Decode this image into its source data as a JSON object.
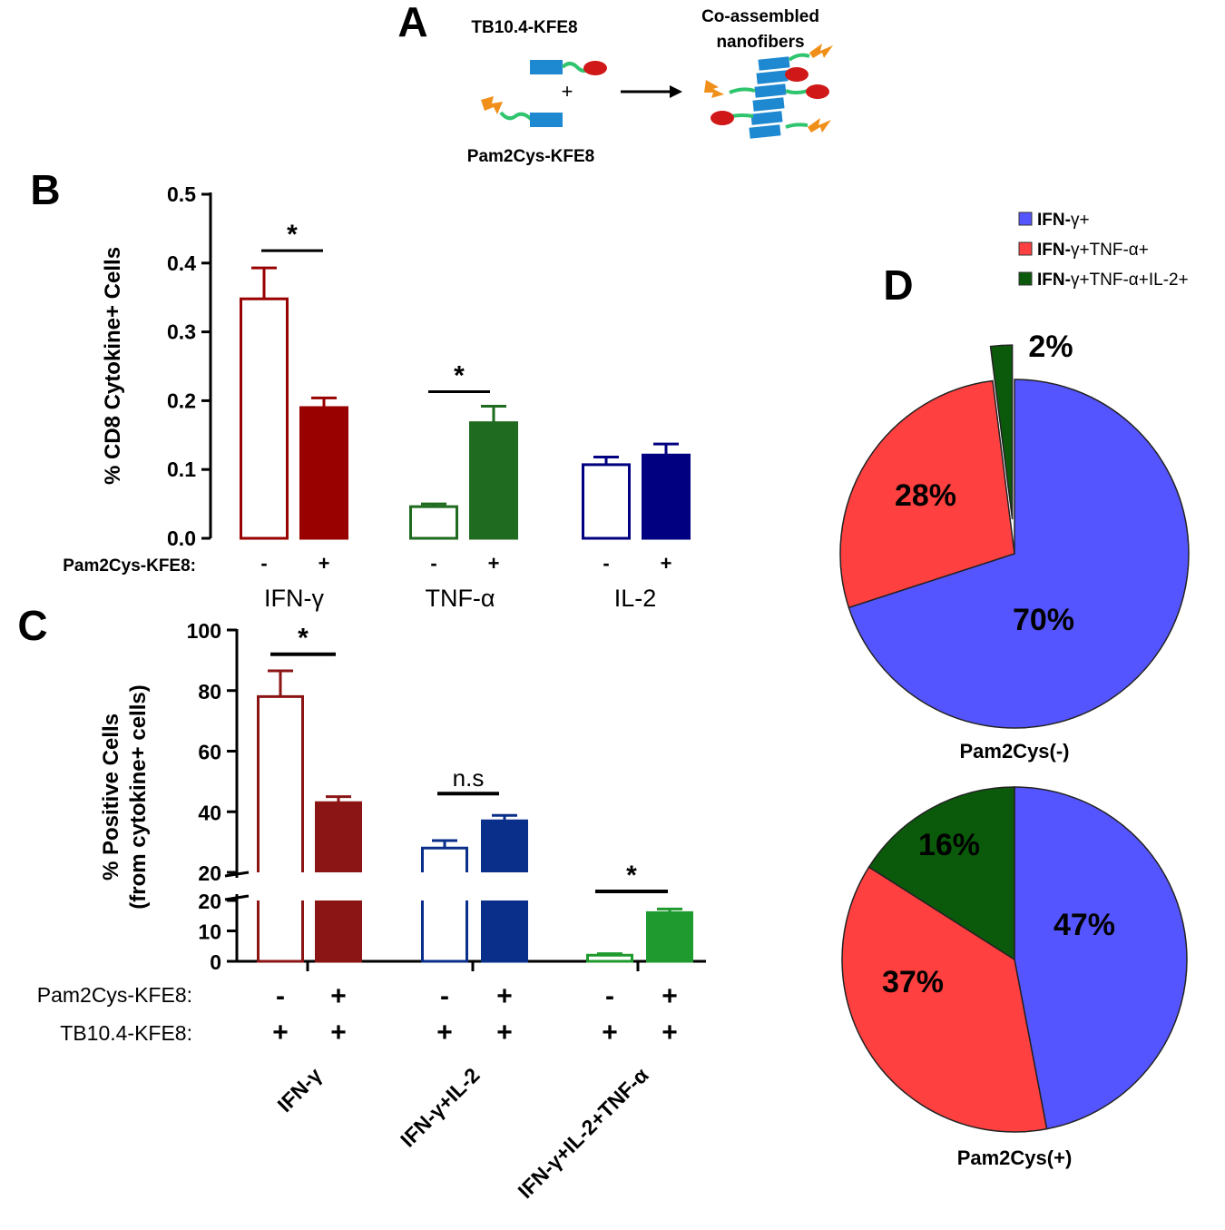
{
  "colors": {
    "ifn": "#990000",
    "ifn_c": "#8b1515",
    "tnf": "#1f6b1f",
    "il2": "#000080",
    "il2_c": "#0a2f8a",
    "green_c": "#1f9a2e",
    "pie_blue": "#5555ff",
    "pie_red": "#ff4040",
    "pie_green": "#0b5a0b",
    "pep_blue": "#1e88d0",
    "pep_green": "#2fc46e",
    "pep_red": "#d01818",
    "pep_orange": "#f0901a"
  },
  "panel_a": {
    "letter": "A",
    "top_label": "TB10.4-KFE8",
    "bottom_label": "Pam2Cys-KFE8",
    "plus": "+",
    "product_label_1": "Co-assembled",
    "product_label_2": "nanofibers",
    "arrow_icon": "right-arrow-icon"
  },
  "panel_b": {
    "letter": "B"
  },
  "panel_c": {
    "letter": "C"
  },
  "panel_d": {
    "letter": "D"
  },
  "chart_data": [
    {
      "id": "B",
      "type": "bar",
      "ylabel": "% CD8 Cytokine+ Cells",
      "ylim": [
        0,
        0.5
      ],
      "yticks": [
        "0.0",
        "0.1",
        "0.2",
        "0.3",
        "0.4",
        "0.5"
      ],
      "row_label": "Pam2Cys-KFE8:",
      "categories": [
        "IFN-γ",
        "TNF-α",
        "IL-2"
      ],
      "bars": [
        {
          "group": "IFN-γ",
          "pam2cys": "-",
          "value": 0.348,
          "err": 0.045,
          "filled": false,
          "color": "#990000"
        },
        {
          "group": "IFN-γ",
          "pam2cys": "+",
          "value": 0.19,
          "err": 0.014,
          "filled": true,
          "color": "#990000"
        },
        {
          "group": "TNF-α",
          "pam2cys": "-",
          "value": 0.046,
          "err": 0.004,
          "filled": false,
          "color": "#1f6b1f"
        },
        {
          "group": "TNF-α",
          "pam2cys": "+",
          "value": 0.168,
          "err": 0.024,
          "filled": true,
          "color": "#1f6b1f"
        },
        {
          "group": "IL-2",
          "pam2cys": "-",
          "value": 0.107,
          "err": 0.011,
          "filled": false,
          "color": "#000080"
        },
        {
          "group": "IL-2",
          "pam2cys": "+",
          "value": 0.121,
          "err": 0.016,
          "filled": true,
          "color": "#000080"
        }
      ],
      "significance": [
        {
          "group": "IFN-γ",
          "label": "*",
          "level": 0.418
        },
        {
          "group": "TNF-α",
          "label": "*",
          "level": 0.213
        }
      ]
    },
    {
      "id": "C",
      "type": "bar",
      "ylabel_1": "% Positive Cells",
      "ylabel_2": "(from cytokine+ cells)",
      "ylim": [
        0,
        100
      ],
      "axis_break": [
        20,
        20
      ],
      "upper_ticks": [
        "20",
        "40",
        "60",
        "80",
        "100"
      ],
      "lower_ticks": [
        "0",
        "10",
        "20"
      ],
      "row_labels": [
        "Pam2Cys-KFE8:",
        "TB10.4-KFE8:"
      ],
      "categories": [
        "IFN-γ",
        "IFN-γ+IL-2",
        "IFN-γ+IL-2+TNF-α"
      ],
      "bars": [
        {
          "group": "IFN-γ",
          "pam2cys": "-",
          "tb104": "+",
          "value": 78,
          "err": 8.5,
          "filled": false,
          "color": "#8b1515"
        },
        {
          "group": "IFN-γ",
          "pam2cys": "+",
          "tb104": "+",
          "value": 43,
          "err": 2,
          "filled": true,
          "color": "#8b1515"
        },
        {
          "group": "IFN-γ+IL-2",
          "pam2cys": "-",
          "tb104": "+",
          "value": 28,
          "err": 2.5,
          "filled": false,
          "color": "#0a2f8a"
        },
        {
          "group": "IFN-γ+IL-2",
          "pam2cys": "+",
          "tb104": "+",
          "value": 37,
          "err": 1.8,
          "filled": true,
          "color": "#0a2f8a"
        },
        {
          "group": "IFN-γ+IL-2+TNF-α",
          "pam2cys": "-",
          "tb104": "+",
          "value": 2,
          "err": 0.5,
          "filled": false,
          "color": "#1f9a2e"
        },
        {
          "group": "IFN-γ+IL-2+TNF-α",
          "pam2cys": "+",
          "tb104": "+",
          "value": 16,
          "err": 1.2,
          "filled": true,
          "color": "#1f9a2e"
        }
      ],
      "significance": [
        {
          "group": "IFN-γ",
          "label": "*",
          "level": 92
        },
        {
          "group": "IFN-γ+IL-2",
          "label": "n.s",
          "level": 46
        },
        {
          "group": "IFN-γ+IL-2+TNF-α",
          "label": "*",
          "level": 18.5
        }
      ]
    },
    {
      "id": "D",
      "type": "pie",
      "legend": [
        {
          "bold": "IFN-",
          "rest": "γ+",
          "color": "#5555ff"
        },
        {
          "bold": "IFN-",
          "rest": "γ+TNF-α+",
          "color": "#ff4040"
        },
        {
          "bold": "IFN-",
          "rest": "γ+TNF-α+IL-2+",
          "color": "#0b5a0b"
        }
      ],
      "pies": [
        {
          "label": "Pam2Cys(-)",
          "slices": [
            {
              "name": "IFN-γ+",
              "value": 70,
              "label": "70%"
            },
            {
              "name": "IFN-γ+TNF-α+",
              "value": 28,
              "label": "28%"
            },
            {
              "name": "IFN-γ+TNF-α+IL-2+",
              "value": 2,
              "label": "2%",
              "exploded": true
            }
          ]
        },
        {
          "label": "Pam2Cys(+)",
          "slices": [
            {
              "name": "IFN-γ+",
              "value": 47,
              "label": "47%"
            },
            {
              "name": "IFN-γ+TNF-α+",
              "value": 37,
              "label": "37%"
            },
            {
              "name": "IFN-γ+TNF-α+IL-2+",
              "value": 16,
              "label": "16%"
            }
          ]
        }
      ]
    }
  ]
}
